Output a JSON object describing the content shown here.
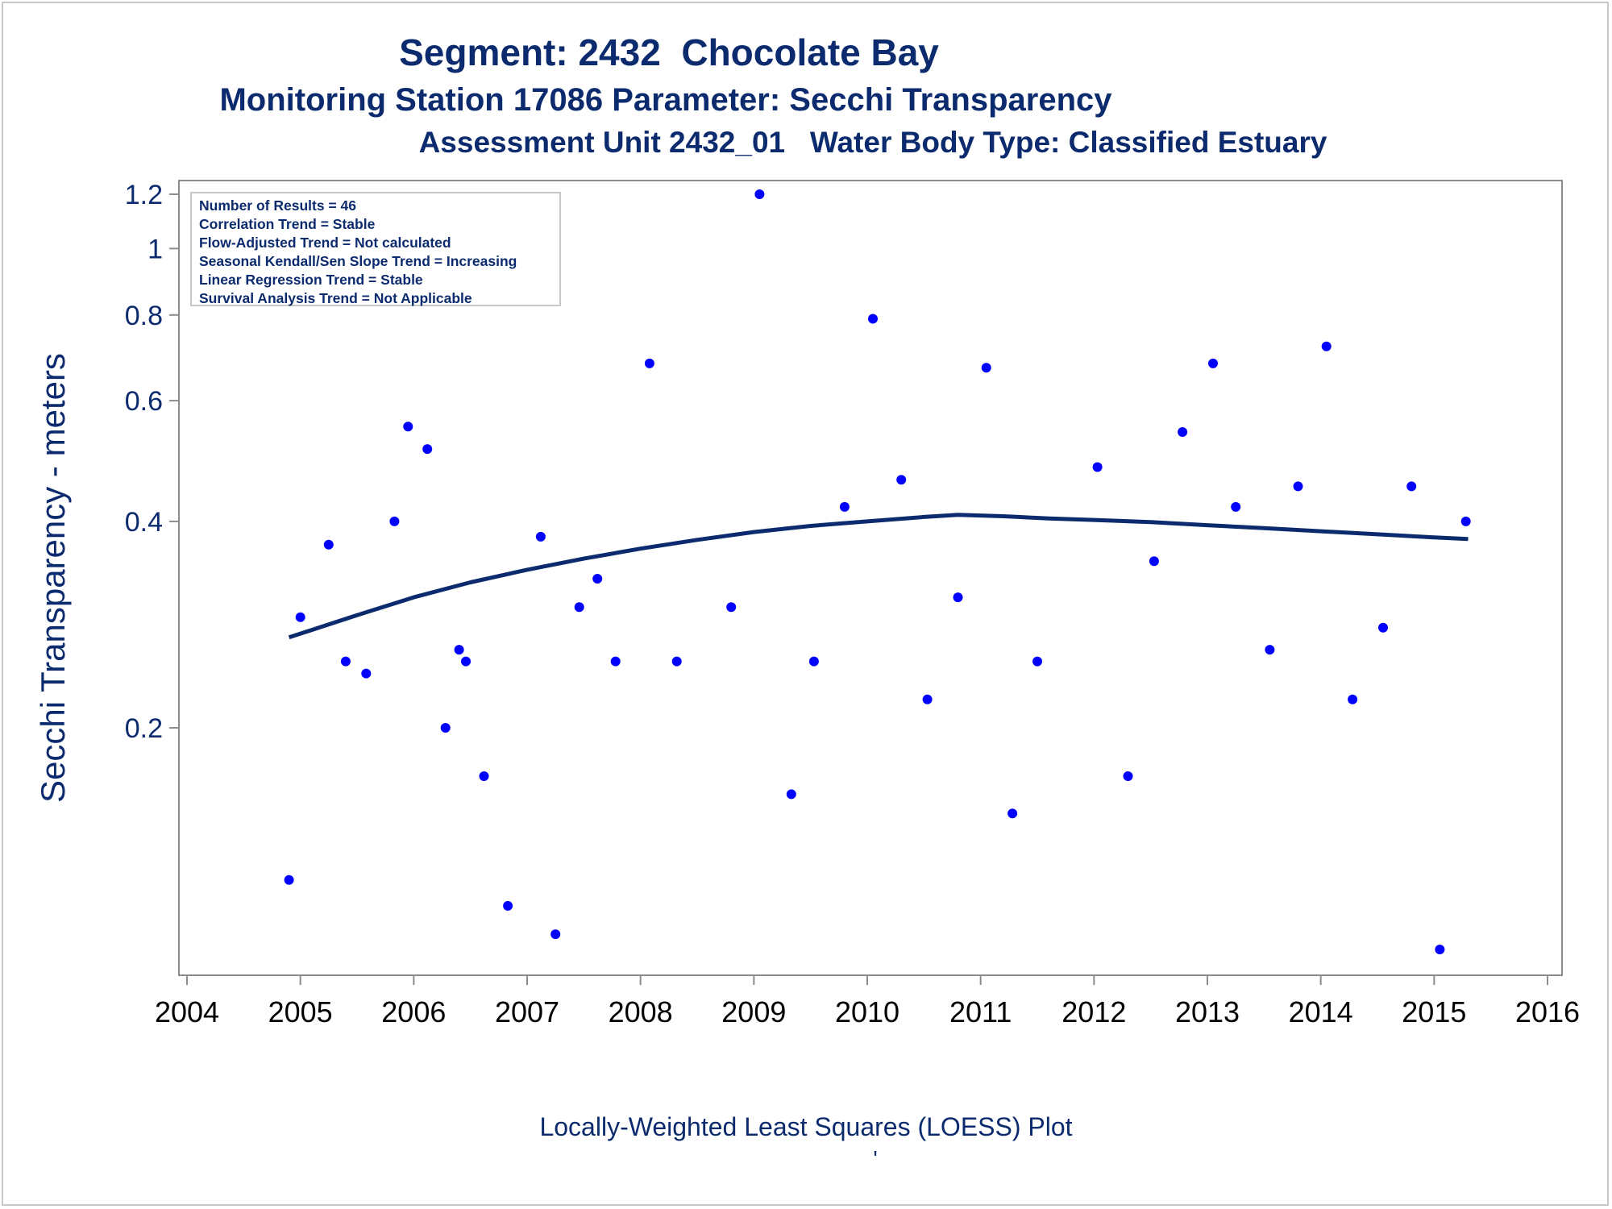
{
  "chart_data": {
    "type": "scatter",
    "title": "Segment: 2432  Chocolate Bay",
    "subtitle": "Monitoring Station 17086 Parameter: Secchi Transparency",
    "subtitle2": "Assessment Unit 2432_01   Water Body Type: Classified Estuary",
    "ylabel": "Secchi Transparency - meters",
    "xlabel": "Locally-Weighted Least Squares (LOESS) Plot",
    "footnote": "'",
    "y_scale": "log",
    "xlim": [
      2004,
      2016
    ],
    "ylim": [
      0.095,
      1.25
    ],
    "x_ticks": [
      2004,
      2005,
      2006,
      2007,
      2008,
      2009,
      2010,
      2011,
      2012,
      2013,
      2014,
      2015,
      2016
    ],
    "y_ticks": [
      0.2,
      0.4,
      0.6,
      0.8,
      1,
      1.2
    ],
    "info_box": [
      "Number of Results = 46",
      "Correlation Trend = Stable",
      "Flow-Adjusted Trend = Not calculated",
      "Seasonal Kendall/Sen Slope Trend = Increasing",
      "Linear Regression Trend = Stable",
      "Survival Analysis Trend = Not Applicable"
    ],
    "colors": {
      "points": "#0000ff",
      "loess": "#0c2b6e",
      "text": "#0c2b6e"
    },
    "points": [
      {
        "x": 2004.9,
        "y": 0.12
      },
      {
        "x": 2005.0,
        "y": 0.29
      },
      {
        "x": 2005.25,
        "y": 0.37
      },
      {
        "x": 2005.4,
        "y": 0.25
      },
      {
        "x": 2005.58,
        "y": 0.24
      },
      {
        "x": 2005.83,
        "y": 0.4
      },
      {
        "x": 2005.95,
        "y": 0.55
      },
      {
        "x": 2006.12,
        "y": 0.51
      },
      {
        "x": 2006.28,
        "y": 0.2
      },
      {
        "x": 2006.4,
        "y": 0.26
      },
      {
        "x": 2006.46,
        "y": 0.25
      },
      {
        "x": 2006.62,
        "y": 0.17
      },
      {
        "x": 2006.83,
        "y": 0.11
      },
      {
        "x": 2007.12,
        "y": 0.38
      },
      {
        "x": 2007.25,
        "y": 0.1
      },
      {
        "x": 2007.46,
        "y": 0.3
      },
      {
        "x": 2007.62,
        "y": 0.33
      },
      {
        "x": 2007.78,
        "y": 0.25
      },
      {
        "x": 2008.08,
        "y": 0.68
      },
      {
        "x": 2008.32,
        "y": 0.25
      },
      {
        "x": 2008.8,
        "y": 0.3
      },
      {
        "x": 2009.05,
        "y": 1.2
      },
      {
        "x": 2009.33,
        "y": 0.16
      },
      {
        "x": 2009.53,
        "y": 0.25
      },
      {
        "x": 2009.8,
        "y": 0.42
      },
      {
        "x": 2010.05,
        "y": 0.79
      },
      {
        "x": 2010.3,
        "y": 0.46
      },
      {
        "x": 2010.53,
        "y": 0.22
      },
      {
        "x": 2010.8,
        "y": 0.31
      },
      {
        "x": 2011.05,
        "y": 0.67
      },
      {
        "x": 2011.28,
        "y": 0.15
      },
      {
        "x": 2011.5,
        "y": 0.25
      },
      {
        "x": 2012.03,
        "y": 0.48
      },
      {
        "x": 2012.3,
        "y": 0.17
      },
      {
        "x": 2012.53,
        "y": 0.35
      },
      {
        "x": 2012.78,
        "y": 0.54
      },
      {
        "x": 2013.05,
        "y": 0.68
      },
      {
        "x": 2013.25,
        "y": 0.42
      },
      {
        "x": 2013.55,
        "y": 0.26
      },
      {
        "x": 2013.8,
        "y": 0.45
      },
      {
        "x": 2014.05,
        "y": 0.72
      },
      {
        "x": 2014.28,
        "y": 0.22
      },
      {
        "x": 2014.55,
        "y": 0.28
      },
      {
        "x": 2014.8,
        "y": 0.45
      },
      {
        "x": 2015.05,
        "y": 0.095
      },
      {
        "x": 2015.28,
        "y": 0.4
      }
    ],
    "loess": [
      {
        "x": 2004.9,
        "y": 0.271
      },
      {
        "x": 2005.5,
        "y": 0.292
      },
      {
        "x": 2006.0,
        "y": 0.31
      },
      {
        "x": 2006.5,
        "y": 0.326
      },
      {
        "x": 2007.0,
        "y": 0.34
      },
      {
        "x": 2007.5,
        "y": 0.353
      },
      {
        "x": 2008.0,
        "y": 0.365
      },
      {
        "x": 2008.5,
        "y": 0.376
      },
      {
        "x": 2009.0,
        "y": 0.386
      },
      {
        "x": 2009.5,
        "y": 0.394
      },
      {
        "x": 2010.0,
        "y": 0.4
      },
      {
        "x": 2010.5,
        "y": 0.406
      },
      {
        "x": 2010.8,
        "y": 0.409
      },
      {
        "x": 2011.2,
        "y": 0.407
      },
      {
        "x": 2011.6,
        "y": 0.404
      },
      {
        "x": 2012.0,
        "y": 0.402
      },
      {
        "x": 2012.5,
        "y": 0.399
      },
      {
        "x": 2013.0,
        "y": 0.395
      },
      {
        "x": 2013.5,
        "y": 0.391
      },
      {
        "x": 2014.0,
        "y": 0.387
      },
      {
        "x": 2014.5,
        "y": 0.383
      },
      {
        "x": 2015.0,
        "y": 0.379
      },
      {
        "x": 2015.3,
        "y": 0.377
      }
    ]
  }
}
